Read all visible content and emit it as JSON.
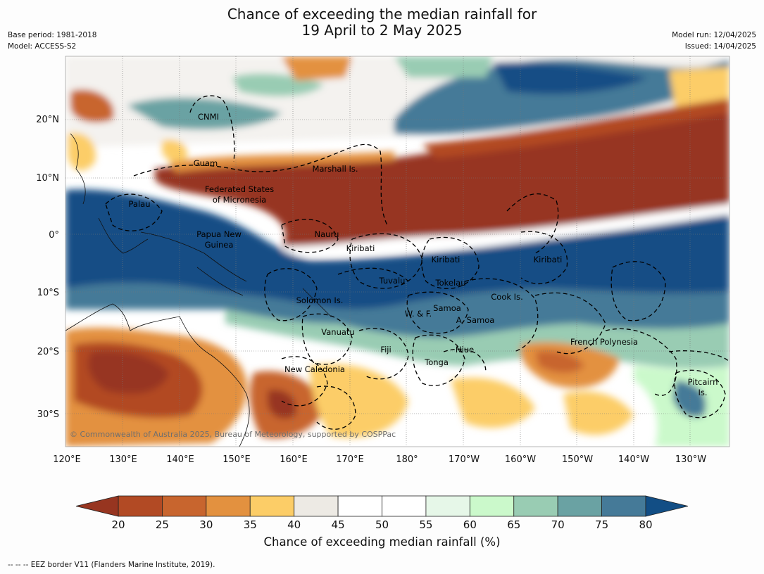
{
  "title": {
    "line1": "Chance of exceeding the median rainfall for",
    "line2": "19 April to 2 May 2025"
  },
  "meta": {
    "base_period": "Base period: 1981-2018",
    "model": "Model: ACCESS-S2",
    "model_run": "Model run: 12/04/2025",
    "issued": "Issued: 14/04/2025"
  },
  "map": {
    "lat_labels": [
      "20°N",
      "10°N",
      "0°",
      "10°S",
      "20°S",
      "30°S"
    ],
    "lon_labels": [
      "120°E",
      "130°E",
      "140°E",
      "150°E",
      "160°E",
      "170°E",
      "180°",
      "170°W",
      "160°W",
      "150°W",
      "140°W",
      "130°W"
    ],
    "regions": [
      {
        "name": "CNMI"
      },
      {
        "name": "Guam"
      },
      {
        "name": "Marshall Is."
      },
      {
        "name": "Federated States"
      },
      {
        "name": "of Micronesia"
      },
      {
        "name": "Palau"
      },
      {
        "name": "Papua New"
      },
      {
        "name": "Guinea"
      },
      {
        "name": "Nauru"
      },
      {
        "name": "Kiribati"
      },
      {
        "name": "Kiribati"
      },
      {
        "name": "Kiribati"
      },
      {
        "name": "Tuvalu"
      },
      {
        "name": "Tokelau"
      },
      {
        "name": "Cook Is."
      },
      {
        "name": "Solomon Is."
      },
      {
        "name": "Samoa"
      },
      {
        "name": "W. & F."
      },
      {
        "name": "A. Samoa"
      },
      {
        "name": "Vanuatu"
      },
      {
        "name": "Fiji"
      },
      {
        "name": "Niue"
      },
      {
        "name": "French Polynesia"
      },
      {
        "name": "Tonga"
      },
      {
        "name": "New Caledonia"
      },
      {
        "name": "Pitcairn"
      },
      {
        "name": "Is."
      }
    ],
    "copyright": "© Commonwealth of Australia 2025, Bureau of Meteorology, supported by COSPPac"
  },
  "colorbar": {
    "ticks": [
      "20",
      "25",
      "30",
      "35",
      "40",
      "45",
      "50",
      "55",
      "60",
      "65",
      "70",
      "75",
      "80"
    ],
    "colors": [
      "#b24a24",
      "#c8652e",
      "#e3913f",
      "#fccd67",
      "#edeae4",
      "#ffffff",
      "#ffffff",
      "#e6f7e8",
      "#cbf9cb",
      "#99ccb3",
      "#6aa2a3",
      "#457a98"
    ],
    "under_color": "#973520",
    "over_color": "#124e85",
    "label": "Chance of exceeding median rainfall (%)"
  },
  "footnote": "--  --  -- EEZ border V11 (Flanders Marine Institute, 2019)."
}
